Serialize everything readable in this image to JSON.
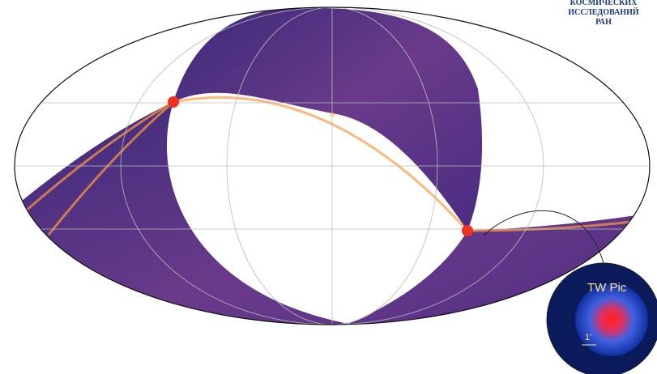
{
  "logo": {
    "lines": [
      "КОСМИЧЕСКИХ",
      "ИССЛЕДОВАНИЙ",
      "РАН"
    ]
  },
  "inset": {
    "label": "TW Pic",
    "scale": "1'"
  }
}
